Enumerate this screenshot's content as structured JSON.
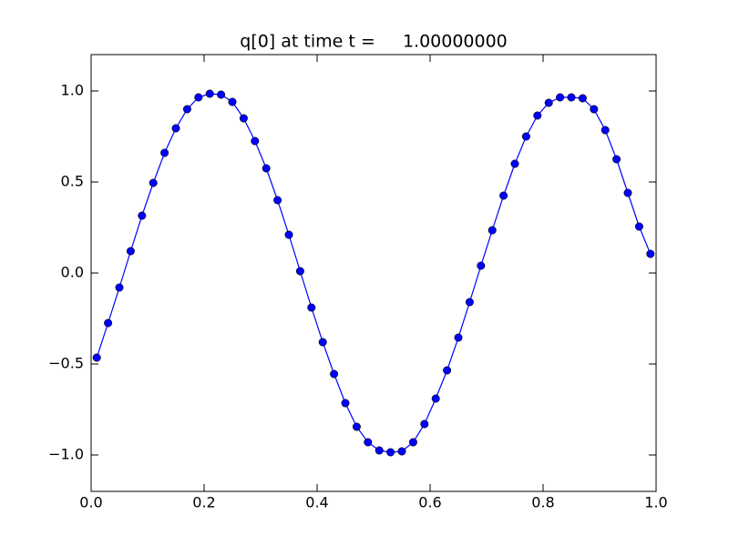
{
  "chart_data": {
    "type": "line",
    "title": "q[0] at time t =     1.00000000",
    "x": [
      0.01,
      0.03,
      0.05,
      0.07,
      0.09,
      0.11,
      0.13,
      0.15,
      0.17,
      0.19,
      0.21,
      0.23,
      0.25,
      0.27,
      0.29,
      0.31,
      0.33,
      0.35,
      0.37,
      0.39,
      0.41,
      0.43,
      0.45,
      0.47,
      0.49,
      0.51,
      0.53,
      0.55,
      0.57,
      0.59,
      0.61,
      0.63,
      0.65,
      0.67,
      0.69,
      0.71,
      0.73,
      0.75,
      0.77,
      0.79,
      0.81,
      0.83,
      0.85,
      0.87,
      0.89,
      0.91,
      0.93,
      0.95,
      0.97,
      0.99
    ],
    "series": [
      {
        "color": "#0000ff",
        "values": [
          -0.465,
          -0.275,
          -0.08,
          0.12,
          0.315,
          0.495,
          0.66,
          0.795,
          0.9,
          0.965,
          0.985,
          0.98,
          0.94,
          0.85,
          0.725,
          0.575,
          0.4,
          0.21,
          0.01,
          -0.19,
          -0.38,
          -0.555,
          -0.715,
          -0.845,
          -0.93,
          -0.975,
          -0.985,
          -0.98,
          -0.93,
          -0.83,
          -0.69,
          -0.535,
          -0.355,
          -0.16,
          0.04,
          0.235,
          0.425,
          0.6,
          0.75,
          0.865,
          0.935,
          0.965,
          0.965,
          0.96,
          0.9,
          0.785,
          0.625,
          0.44,
          0.255,
          0.105
        ]
      }
    ],
    "xlim": [
      0,
      1
    ],
    "xticks": [
      {
        "value": 0,
        "label": "0.0"
      },
      0.2,
      0.4,
      0.6,
      0.8,
      {
        "value": 1,
        "label": "1.0"
      }
    ],
    "ylim": [
      -1.2,
      1.2
    ],
    "yticks": [
      {
        "value": -1,
        "label": "−1.0"
      },
      {
        "value": -0.5,
        "label": "−0.5"
      },
      {
        "value": 0,
        "label": "0.0"
      },
      {
        "value": 0.5,
        "label": "0.5"
      },
      {
        "value": 1,
        "label": "1.0"
      }
    ],
    "grid": false
  }
}
